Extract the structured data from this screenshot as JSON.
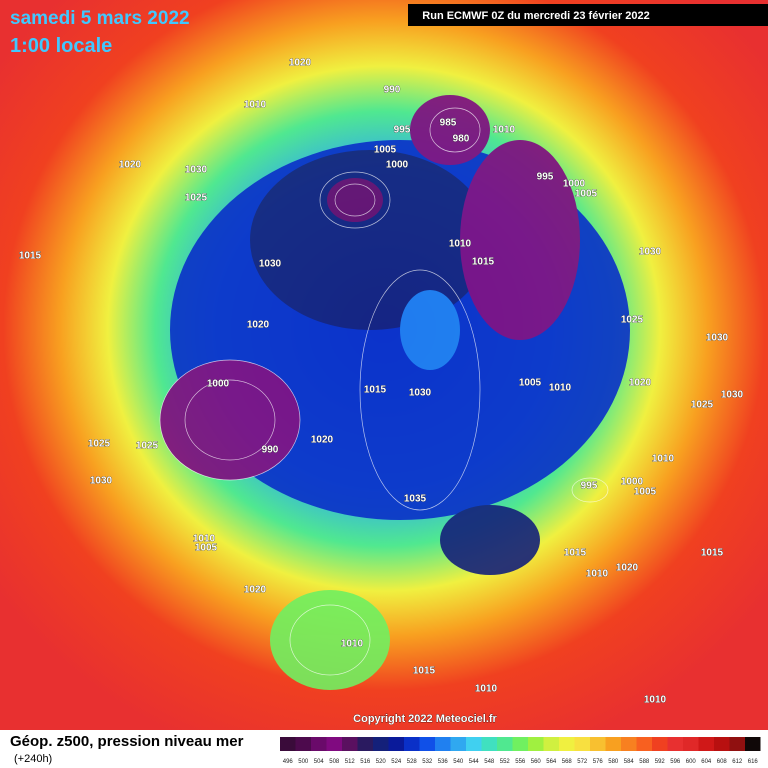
{
  "header": {
    "date": "samedi 5 mars 2022",
    "time": "1:00 locale",
    "run": "Run ECMWF 0Z du mercredi 23 février 2022",
    "copyright": "Copyright 2022 Meteociel.fr"
  },
  "legend": {
    "title": "Géop. z500, pression niveau mer",
    "subtitle": "(+240h)",
    "scale": [
      {
        "value": 496,
        "color": "#3a0b3a"
      },
      {
        "value": 500,
        "color": "#4d0a4d"
      },
      {
        "value": 504,
        "color": "#6a0a6a"
      },
      {
        "value": 508,
        "color": "#800a80"
      },
      {
        "value": 512,
        "color": "#5a1060"
      },
      {
        "value": 516,
        "color": "#2a1a60"
      },
      {
        "value": 520,
        "color": "#14207a"
      },
      {
        "value": 524,
        "color": "#0a1a9a"
      },
      {
        "value": 528,
        "color": "#0a30c8"
      },
      {
        "value": 532,
        "color": "#1050e8"
      },
      {
        "value": 536,
        "color": "#2080f0"
      },
      {
        "value": 540,
        "color": "#30a8f0"
      },
      {
        "value": 544,
        "color": "#40d0f0"
      },
      {
        "value": 548,
        "color": "#40e0c0"
      },
      {
        "value": 552,
        "color": "#50e890"
      },
      {
        "value": 556,
        "color": "#70f060"
      },
      {
        "value": 560,
        "color": "#a0f040"
      },
      {
        "value": 564,
        "color": "#d0f040"
      },
      {
        "value": 568,
        "color": "#f0f040"
      },
      {
        "value": 572,
        "color": "#f8e040"
      },
      {
        "value": 576,
        "color": "#f8c030"
      },
      {
        "value": 580,
        "color": "#f8a020"
      },
      {
        "value": 584,
        "color": "#f88020"
      },
      {
        "value": 588,
        "color": "#f86020"
      },
      {
        "value": 592,
        "color": "#f04020"
      },
      {
        "value": 596,
        "color": "#e83030"
      },
      {
        "value": 600,
        "color": "#e02828"
      },
      {
        "value": 604,
        "color": "#d01818"
      },
      {
        "value": 608,
        "color": "#b81010"
      },
      {
        "value": 612,
        "color": "#901010"
      },
      {
        "value": 616,
        "color": "#100808"
      }
    ]
  },
  "isobars": [
    "1020",
    "1010",
    "990",
    "985",
    "980",
    "995",
    "1000",
    "1005",
    "1010",
    "1020",
    "1030",
    "1025",
    "995",
    "1000",
    "1005",
    "1010",
    "1015",
    "1030",
    "1015",
    "1030",
    "1025",
    "1030",
    "1000",
    "990",
    "1020",
    "1025",
    "1035",
    "1010",
    "1015",
    "1010",
    "1015",
    "1020",
    "1005",
    "1010",
    "1020",
    "1015",
    "1025",
    "1020",
    "1030",
    "995",
    "1000",
    "1005",
    "1025",
    "1030",
    "1010",
    "1005",
    "1030",
    "1020",
    "1010",
    "1015",
    "1010",
    "1010"
  ]
}
